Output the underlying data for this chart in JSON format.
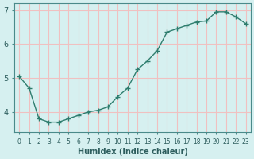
{
  "x": [
    0,
    1,
    2,
    3,
    4,
    5,
    6,
    7,
    8,
    9,
    10,
    11,
    12,
    13,
    14,
    15,
    16,
    17,
    18,
    19,
    20,
    21,
    22,
    23
  ],
  "y": [
    5.05,
    4.7,
    3.8,
    3.7,
    3.7,
    3.8,
    3.9,
    4.0,
    4.05,
    4.15,
    4.45,
    4.7,
    5.25,
    5.5,
    5.8,
    6.35,
    6.45,
    6.55,
    6.65,
    6.68,
    6.95,
    6.95,
    6.8,
    6.6
  ],
  "xlim": [
    -0.5,
    23.5
  ],
  "ylim": [
    3.4,
    7.2
  ],
  "yticks": [
    4,
    5,
    6,
    7
  ],
  "xtick_labels": [
    "0",
    "1",
    "2",
    "3",
    "4",
    "5",
    "6",
    "7",
    "8",
    "9",
    "10",
    "11",
    "12",
    "13",
    "14",
    "15",
    "16",
    "17",
    "18",
    "19",
    "20",
    "21",
    "22",
    "23"
  ],
  "xlabel": "Humidex (Indice chaleur)",
  "line_color": "#2e7d6e",
  "marker": "+",
  "bg_color": "#d6f0f0",
  "grid_color": "#f0c0c0",
  "tick_color": "#2e5e5e",
  "spine_color": "#4a8a8a"
}
